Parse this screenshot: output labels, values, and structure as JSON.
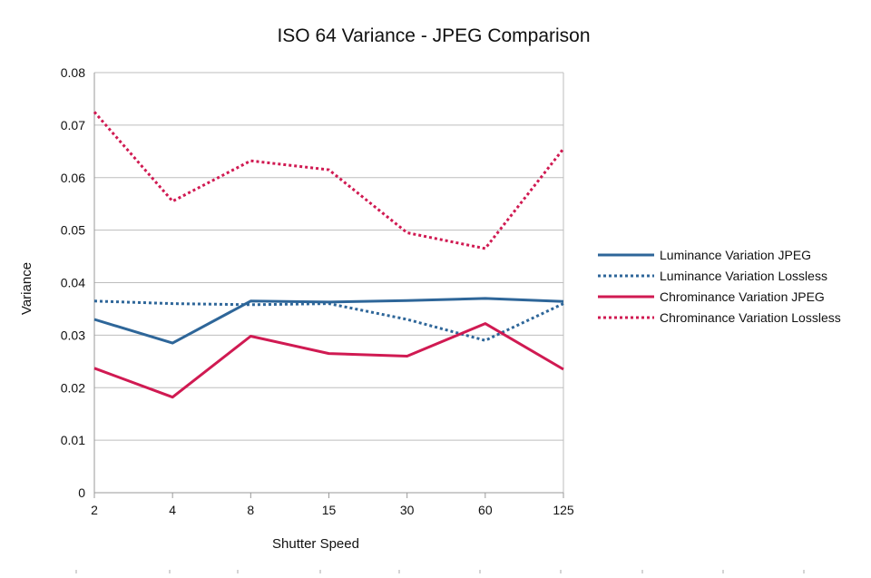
{
  "chart_data": {
    "type": "line",
    "title": "ISO 64 Variance - JPEG Comparison",
    "xlabel": "Shutter Speed",
    "ylabel": "Variance",
    "categories": [
      "2",
      "4",
      "8",
      "15",
      "30",
      "60",
      "125"
    ],
    "ylim": [
      0,
      0.08
    ],
    "yticks": [
      "0",
      "0.01",
      "0.02",
      "0.03",
      "0.04",
      "0.05",
      "0.06",
      "0.07",
      "0.08"
    ],
    "grid": true,
    "legend_position": "right",
    "series": [
      {
        "name": "Luminance Variation JPEG",
        "color": "#2e6699",
        "style": "solid",
        "values": [
          0.033,
          0.0285,
          0.0365,
          0.0363,
          0.0366,
          0.037,
          0.0364
        ]
      },
      {
        "name": "Luminance Variation Lossless",
        "color": "#2e6699",
        "style": "dotted",
        "values": [
          0.0365,
          0.036,
          0.0358,
          0.036,
          0.033,
          0.029,
          0.036
        ]
      },
      {
        "name": "Chrominance Variation JPEG",
        "color": "#d01a52",
        "style": "solid",
        "values": [
          0.0237,
          0.0182,
          0.0298,
          0.0265,
          0.026,
          0.0322,
          0.0235
        ]
      },
      {
        "name": "Chrominance Variation Lossless",
        "color": "#d01a52",
        "style": "dotted",
        "values": [
          0.0725,
          0.0555,
          0.0632,
          0.0615,
          0.0495,
          0.0465,
          0.0655
        ]
      }
    ]
  }
}
